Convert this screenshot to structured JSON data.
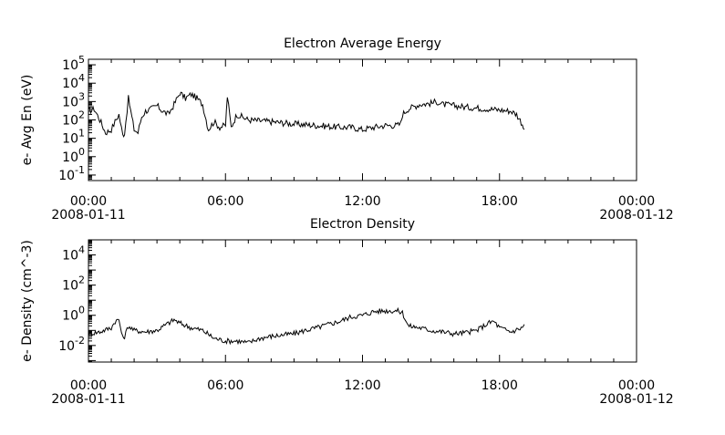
{
  "chart_data": [
    {
      "type": "line",
      "title": "Electron Average Energy",
      "xlabel": "",
      "ylabel": "e- Avg En (eV)",
      "xlim": [
        "2008-01-11T00:00",
        "2008-01-12T00:00"
      ],
      "ylim": [
        0.05,
        200000
      ],
      "yscale": "log",
      "grid": false,
      "x_ticks": [
        {
          "time": "00:00",
          "date": "2008-01-11"
        },
        {
          "time": "06:00",
          "date": ""
        },
        {
          "time": "12:00",
          "date": ""
        },
        {
          "time": "18:00",
          "date": ""
        },
        {
          "time": "00:00",
          "date": "2008-01-12"
        }
      ],
      "y_ticks": [
        {
          "base": "10",
          "exp": "-1",
          "value": 0.1
        },
        {
          "base": "10",
          "exp": "0",
          "value": 1
        },
        {
          "base": "10",
          "exp": "1",
          "value": 10
        },
        {
          "base": "10",
          "exp": "2",
          "value": 100
        },
        {
          "base": "10",
          "exp": "3",
          "value": 1000
        },
        {
          "base": "10",
          "exp": "4",
          "value": 10000
        },
        {
          "base": "10",
          "exp": "5",
          "value": 100000
        }
      ],
      "series": [
        {
          "x": [
            "2008-01-11T00:00",
            "2008-01-11T00:15",
            "2008-01-11T00:30",
            "2008-01-11T00:45",
            "2008-01-11T01:00",
            "2008-01-11T01:10",
            "2008-01-11T01:20",
            "2008-01-11T01:30",
            "2008-01-11T01:35",
            "2008-01-11T01:45",
            "2008-01-11T02:00",
            "2008-01-11T02:10",
            "2008-01-11T02:20",
            "2008-01-11T02:30",
            "2008-01-11T02:45",
            "2008-01-11T03:00",
            "2008-01-11T03:15",
            "2008-01-11T03:30",
            "2008-01-11T03:45",
            "2008-01-11T04:00",
            "2008-01-11T04:15",
            "2008-01-11T04:30",
            "2008-01-11T04:45",
            "2008-01-11T05:00",
            "2008-01-11T05:15",
            "2008-01-11T05:30",
            "2008-01-11T05:45",
            "2008-01-11T06:00",
            "2008-01-11T06:05",
            "2008-01-11T06:15",
            "2008-01-11T06:30",
            "2008-01-11T07:00",
            "2008-01-11T08:00",
            "2008-01-11T09:00",
            "2008-01-11T10:00",
            "2008-01-11T11:00",
            "2008-01-11T11:30",
            "2008-01-11T12:00",
            "2008-01-11T12:30",
            "2008-01-11T13:00",
            "2008-01-11T13:30",
            "2008-01-11T13:40",
            "2008-01-11T13:45",
            "2008-01-11T14:00",
            "2008-01-11T14:30",
            "2008-01-11T15:00",
            "2008-01-11T15:15",
            "2008-01-11T15:30",
            "2008-01-11T16:00",
            "2008-01-11T16:30",
            "2008-01-11T17:00",
            "2008-01-11T17:30",
            "2008-01-11T18:00",
            "2008-01-11T18:30",
            "2008-01-11T18:45",
            "2008-01-11T19:00",
            "2008-01-11T19:05"
          ],
          "y": [
            300,
            400,
            100,
            20,
            30,
            80,
            200,
            15,
            20,
            1500,
            30,
            20,
            150,
            300,
            400,
            600,
            300,
            200,
            700,
            3000,
            1500,
            2500,
            1500,
            700,
            30,
            80,
            40,
            50,
            2000,
            40,
            200,
            100,
            80,
            60,
            50,
            40,
            40,
            30,
            40,
            50,
            50,
            60,
            200,
            400,
            700,
            800,
            1000,
            700,
            600,
            500,
            450,
            400,
            350,
            300,
            200,
            60,
            30
          ]
        }
      ]
    },
    {
      "type": "line",
      "title": "Electron Density",
      "xlabel": "",
      "ylabel": "e- Density (cm^-3)",
      "xlim": [
        "2008-01-11T00:00",
        "2008-01-12T00:00"
      ],
      "ylim": [
        0.0008,
        100000
      ],
      "yscale": "log",
      "grid": false,
      "x_ticks": [
        {
          "time": "00:00",
          "date": "2008-01-11"
        },
        {
          "time": "06:00",
          "date": ""
        },
        {
          "time": "12:00",
          "date": ""
        },
        {
          "time": "18:00",
          "date": ""
        },
        {
          "time": "00:00",
          "date": "2008-01-12"
        }
      ],
      "y_ticks": [
        {
          "base": "10",
          "exp": "-2",
          "value": 0.01
        },
        {
          "base": "10",
          "exp": "0",
          "value": 1
        },
        {
          "base": "10",
          "exp": "2",
          "value": 100
        },
        {
          "base": "10",
          "exp": "4",
          "value": 10000
        }
      ],
      "series": [
        {
          "x": [
            "2008-01-11T00:00",
            "2008-01-11T00:30",
            "2008-01-11T01:00",
            "2008-01-11T01:10",
            "2008-01-11T01:20",
            "2008-01-11T01:30",
            "2008-01-11T01:35",
            "2008-01-11T01:45",
            "2008-01-11T02:00",
            "2008-01-11T02:30",
            "2008-01-11T03:00",
            "2008-01-11T03:30",
            "2008-01-11T03:45",
            "2008-01-11T04:00",
            "2008-01-11T04:30",
            "2008-01-11T05:00",
            "2008-01-11T05:30",
            "2008-01-11T06:00",
            "2008-01-11T06:30",
            "2008-01-11T07:00",
            "2008-01-11T07:30",
            "2008-01-11T08:00",
            "2008-01-11T08:30",
            "2008-01-11T09:00",
            "2008-01-11T09:30",
            "2008-01-11T10:00",
            "2008-01-11T10:30",
            "2008-01-11T11:00",
            "2008-01-11T11:30",
            "2008-01-11T12:00",
            "2008-01-11T12:30",
            "2008-01-11T13:00",
            "2008-01-11T13:30",
            "2008-01-11T13:45",
            "2008-01-11T14:00",
            "2008-01-11T14:30",
            "2008-01-11T15:00",
            "2008-01-11T15:30",
            "2008-01-11T16:00",
            "2008-01-11T16:30",
            "2008-01-11T17:00",
            "2008-01-11T17:30",
            "2008-01-11T17:45",
            "2008-01-11T18:00",
            "2008-01-11T18:30",
            "2008-01-11T19:00",
            "2008-01-11T19:05"
          ],
          "y": [
            0.06,
            0.08,
            0.15,
            0.4,
            0.5,
            0.03,
            0.04,
            0.2,
            0.1,
            0.08,
            0.1,
            0.3,
            0.5,
            0.3,
            0.15,
            0.1,
            0.03,
            0.02,
            0.02,
            0.015,
            0.03,
            0.04,
            0.05,
            0.06,
            0.1,
            0.15,
            0.25,
            0.4,
            0.8,
            1.0,
            1.8,
            2.0,
            2.0,
            1.5,
            0.2,
            0.15,
            0.1,
            0.08,
            0.06,
            0.07,
            0.1,
            0.3,
            0.4,
            0.15,
            0.08,
            0.15,
            0.25
          ]
        }
      ]
    }
  ]
}
